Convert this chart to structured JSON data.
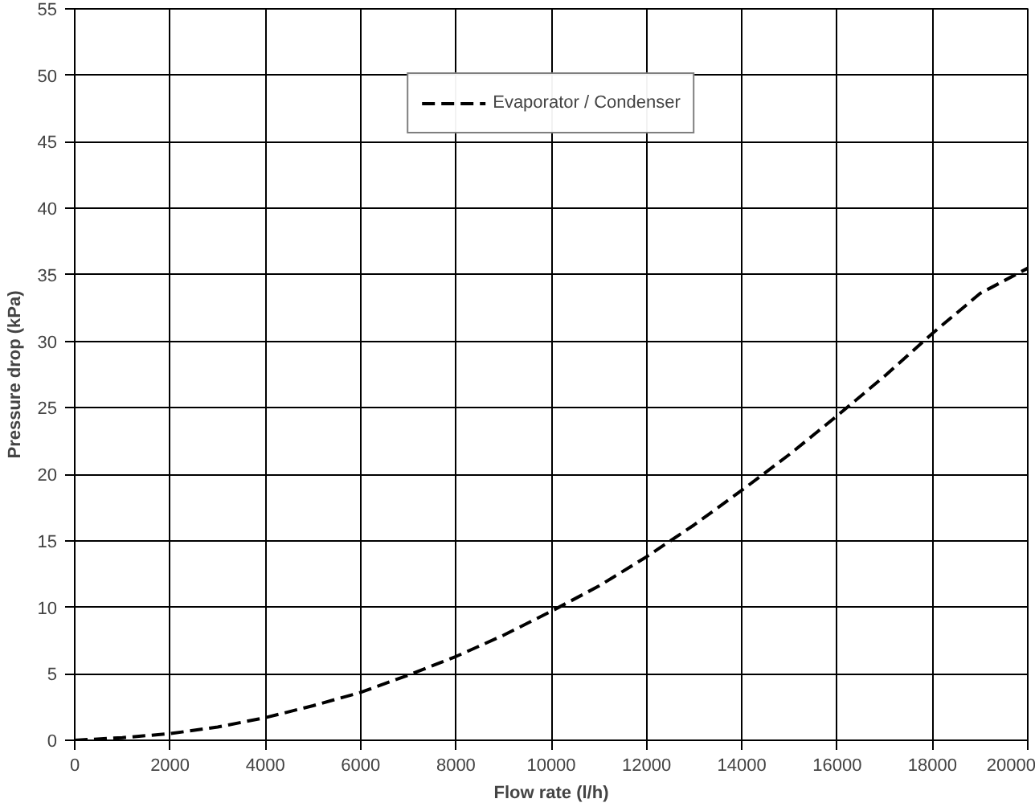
{
  "chart_data": {
    "type": "line",
    "xlabel": "Flow rate (l/h)",
    "ylabel": "Pressure drop (kPa)",
    "x": [
      0,
      1000,
      2000,
      3000,
      4000,
      5000,
      6000,
      7000,
      8000,
      9000,
      10000,
      11000,
      12000,
      13000,
      14000,
      15000,
      16000,
      17000,
      18000,
      19000,
      20000
    ],
    "series": [
      {
        "name": "Evaporator / Condenser",
        "color": "#000000",
        "values": [
          0,
          0.2,
          0.5,
          1.0,
          1.7,
          2.6,
          3.6,
          4.9,
          6.3,
          7.9,
          9.7,
          11.6,
          13.8,
          16.2,
          18.8,
          21.5,
          24.4,
          27.4,
          30.6,
          33.6,
          35.5
        ]
      }
    ],
    "xlim": [
      0,
      20000
    ],
    "ylim": [
      0,
      55
    ],
    "xticks": [
      0,
      2000,
      4000,
      6000,
      8000,
      10000,
      12000,
      14000,
      16000,
      18000,
      20000
    ],
    "yticks": [
      0,
      5,
      10,
      15,
      20,
      25,
      30,
      35,
      40,
      45,
      50,
      55
    ],
    "grid": true,
    "legend": "top",
    "line_style": "dashed",
    "marker": "none"
  }
}
